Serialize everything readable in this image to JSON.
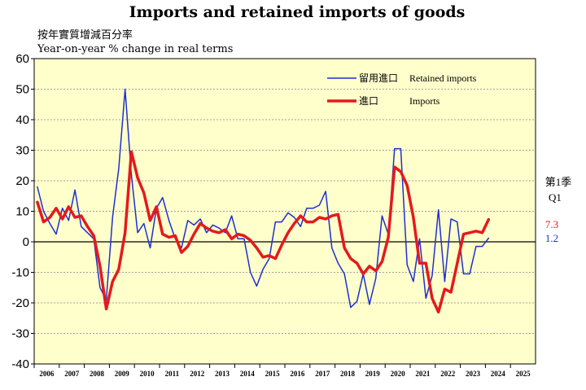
{
  "title": "Imports and retained imports of goods",
  "ylabel_zh": "按年實質增減百分率",
  "ylabel_en": "Year-on-year % change in real terms",
  "legend": {
    "retained_zh": "留用進口",
    "retained_en": "Retained imports",
    "imports_zh": "進口",
    "imports_en": "Imports"
  },
  "side_labels": {
    "quarter_zh": "第1季",
    "quarter_en": "Q1",
    "imports_value": "7.3",
    "retained_value": "1.2"
  },
  "colors": {
    "plot_bg": "#ffffcc",
    "retained": "#1f2fd0",
    "imports": "#e41a1c",
    "grid": "#a0a0a0",
    "zero_line": "#000000"
  },
  "chart_data": {
    "type": "line",
    "x_start_quarter": "2006 Q1",
    "ylim": [
      -40,
      60
    ],
    "yticks": [
      -40,
      -30,
      -20,
      -10,
      0,
      10,
      20,
      30,
      40,
      50,
      60
    ],
    "year_labels": [
      "2006",
      "2007",
      "2008",
      "2009",
      "2010",
      "2011",
      "2012",
      "2013",
      "2014",
      "2015",
      "2016",
      "2017",
      "2018",
      "2019",
      "2020",
      "2021",
      "2022",
      "2023",
      "2024",
      "2025"
    ],
    "grid": true,
    "legend_position": "top-right",
    "series": [
      {
        "name": "Retained imports",
        "values": [
          18,
          10,
          6,
          2.5,
          11,
          7,
          17,
          5,
          3,
          1,
          -15,
          -19,
          8,
          24,
          50,
          22,
          3,
          6,
          -2,
          11,
          14.5,
          7,
          1,
          -2,
          7,
          5.5,
          7.5,
          3,
          5.5,
          4.5,
          3,
          8.5,
          1,
          1,
          -10,
          -14.5,
          -9,
          -5.5,
          6.5,
          6.5,
          9.5,
          8,
          5,
          11,
          11,
          12,
          16.5,
          -2,
          -7,
          -10.5,
          -21.5,
          -19.5,
          -10.5,
          -20.5,
          -12,
          8.5,
          2.5,
          30.5,
          30.5,
          -7.5,
          -13,
          1,
          -18.5,
          -11,
          10.5,
          -13,
          7.5,
          6.5,
          -10.5,
          -10.5,
          -1.5,
          -1.5,
          1.2
        ]
      },
      {
        "name": "Imports",
        "values": [
          13,
          6.5,
          8,
          11,
          7.5,
          11.5,
          8,
          8.5,
          5,
          2,
          -8,
          -22,
          -13,
          -9,
          3,
          29.5,
          21,
          16,
          7,
          11.5,
          2.5,
          1.5,
          2,
          -3.5,
          -1.5,
          2.5,
          6,
          4.5,
          3.5,
          3,
          4,
          1,
          2.5,
          2,
          0.5,
          -2,
          -5,
          -4.5,
          -5.5,
          -1,
          3,
          6,
          8.5,
          6.5,
          6.5,
          8,
          7.5,
          8.5,
          9,
          -2,
          -5.5,
          -7,
          -10.5,
          -8,
          -9.5,
          -6.5,
          1.5,
          24.5,
          23,
          18.5,
          8,
          -7,
          -7,
          -18.5,
          -23,
          -15.5,
          -16.5,
          -7,
          2.5,
          3,
          3.5,
          3,
          7.3
        ]
      }
    ]
  }
}
